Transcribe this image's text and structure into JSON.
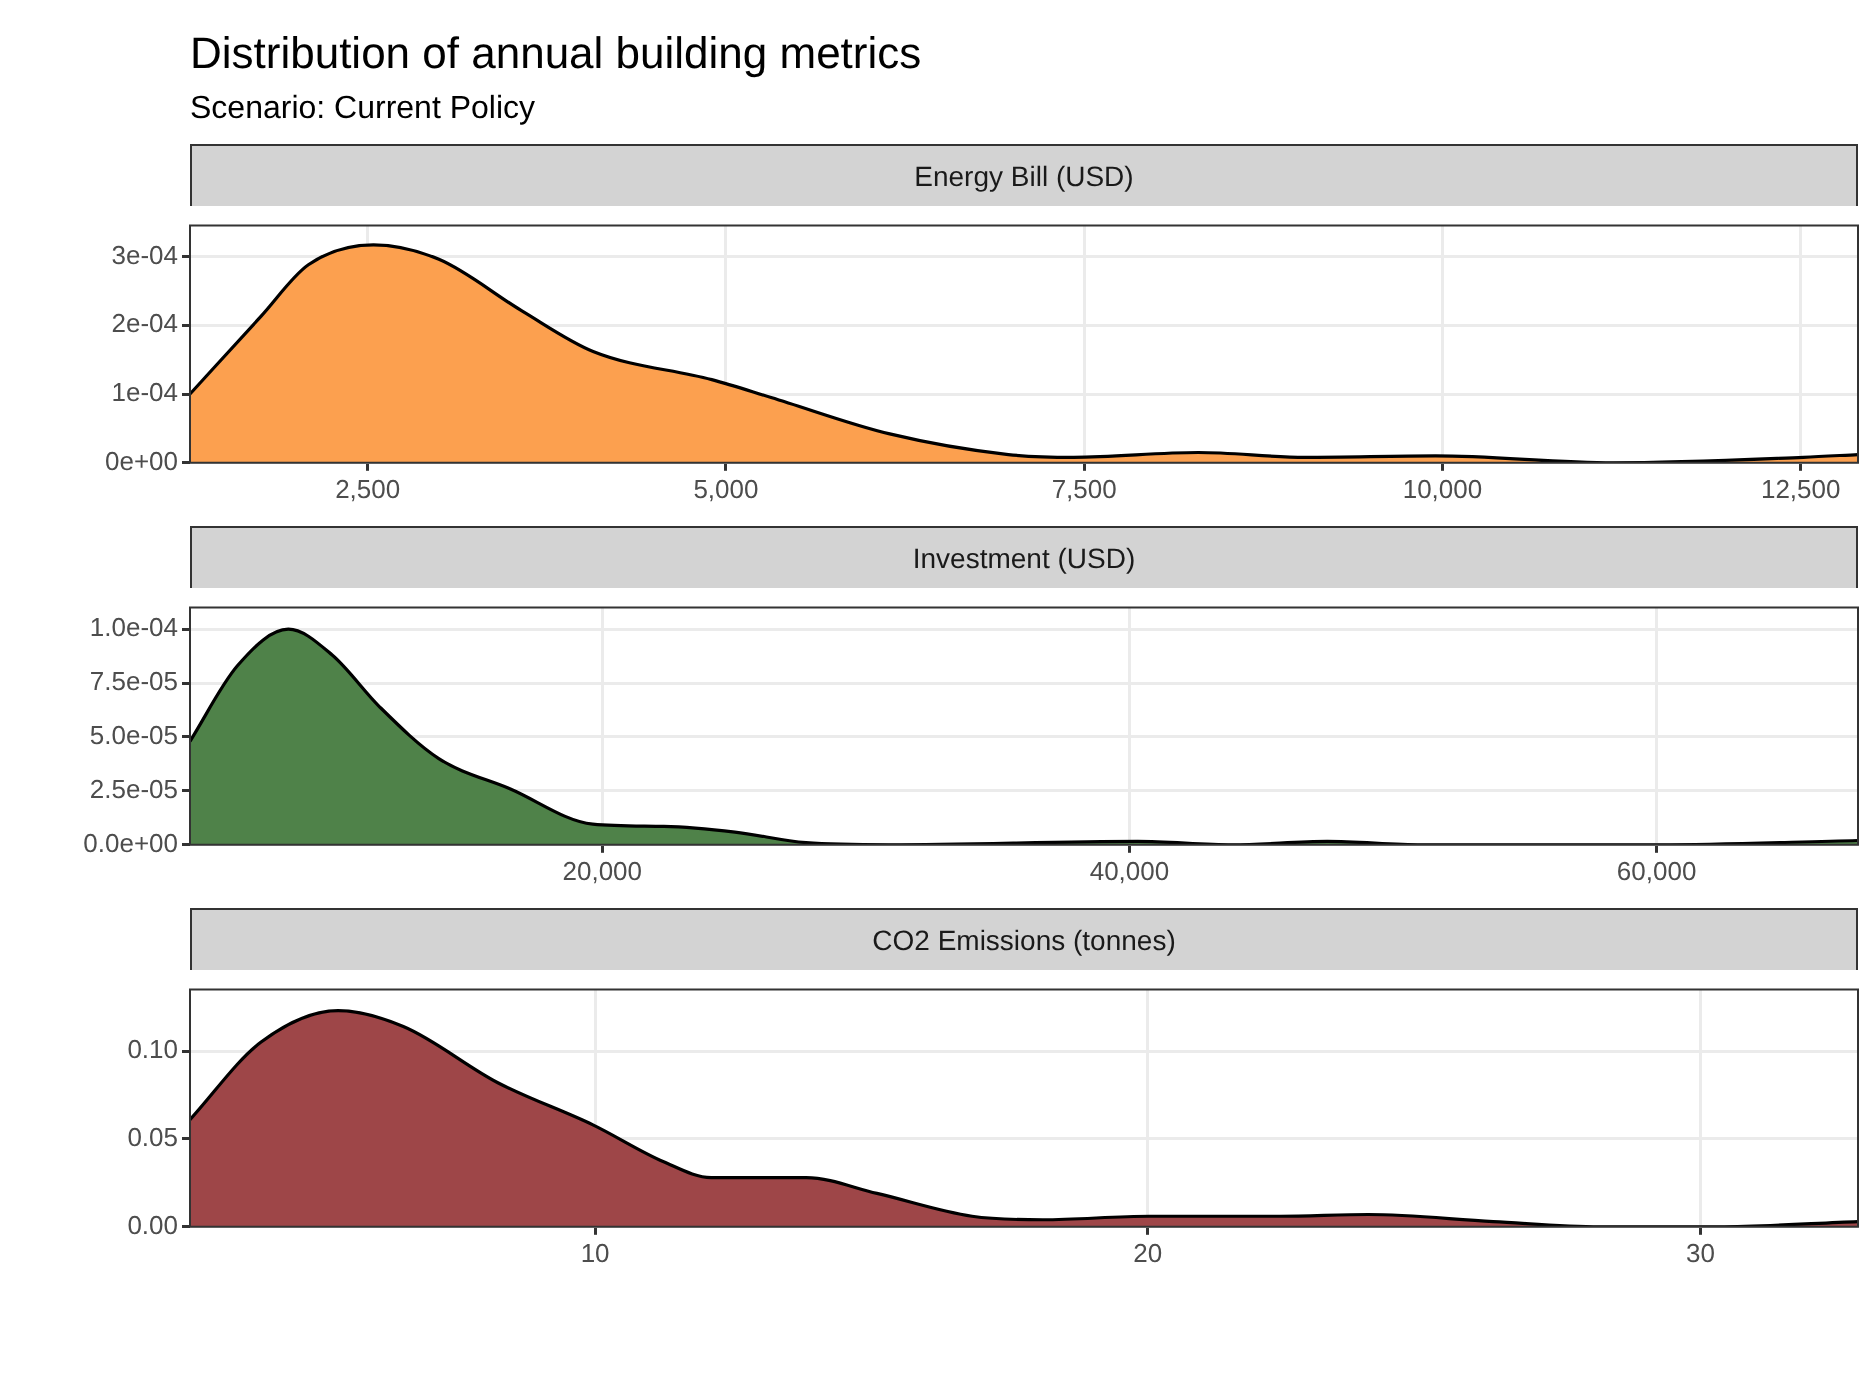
{
  "chart_data": [
    {
      "type": "other",
      "title": "Distribution of annual building metrics",
      "subtitle": "Scenario: Current Policy"
    },
    {
      "type": "area",
      "title": "Energy Bill (USD)",
      "color": "#fca04f",
      "x": [
        1260,
        1755,
        2086,
        2540,
        2997,
        3576,
        4073,
        4901,
        5315,
        6143,
        6971,
        7427,
        8296,
        9041,
        9952,
        11194,
        12519,
        12900
      ],
      "values": [
        0.0001,
        0.000213,
        0.000288,
        0.000317,
        0.000296,
        0.000221,
        0.000162,
        0.000121,
        9.5e-05,
        4.2e-05,
        1.2e-05,
        8e-06,
        1.5e-05,
        8e-06,
        1e-05,
        0,
        8e-06,
        1.2e-05
      ],
      "xlim": [
        1260,
        12900
      ],
      "ylim": [
        0,
        0.000345
      ],
      "xticks": [
        {
          "value": 2500,
          "label": "2,500"
        },
        {
          "value": 5000,
          "label": "5,000"
        },
        {
          "value": 7500,
          "label": "7,500"
        },
        {
          "value": 10000,
          "label": "10,000"
        },
        {
          "value": 12500,
          "label": "12,500"
        }
      ],
      "yticks": [
        {
          "value": 0,
          "label": "0e+00"
        },
        {
          "value": 0.0001,
          "label": "1e-04"
        },
        {
          "value": 0.0002,
          "label": "2e-04"
        },
        {
          "value": 0.0003,
          "label": "3e-04"
        }
      ],
      "grid": true
    },
    {
      "type": "area",
      "title": "Investment (USD)",
      "color": "#4f8249",
      "x": [
        4360,
        6158,
        8091,
        9754,
        11551,
        13798,
        16495,
        19640,
        22337,
        25033,
        27730,
        30875,
        40313,
        43908,
        47503,
        51098,
        60086,
        67640
      ],
      "values": [
        4.8e-05,
        8.3e-05,
        0.0001,
        8.8e-05,
        6.4e-05,
        4e-05,
        2.6e-05,
        9.6e-06,
        8.5e-06,
        5.9e-06,
        1e-06,
        0,
        1.6e-06,
        0,
        1.6e-06,
        0,
        0,
        2e-06
      ],
      "xlim": [
        4360,
        67640
      ],
      "ylim": [
        0,
        0.00011
      ],
      "xticks": [
        {
          "value": 20000,
          "label": "20,000"
        },
        {
          "value": 40000,
          "label": "40,000"
        },
        {
          "value": 60000,
          "label": "60,000"
        }
      ],
      "yticks": [
        {
          "value": 0,
          "label": "0.0e+00"
        },
        {
          "value": 2.5e-05,
          "label": "2.5e-05"
        },
        {
          "value": 5e-05,
          "label": "5.0e-05"
        },
        {
          "value": 7.5e-05,
          "label": "7.5e-05"
        },
        {
          "value": 0.0001,
          "label": "1.0e-04"
        }
      ],
      "grid": true
    },
    {
      "type": "area",
      "title": "CO2 Emissions (tonnes)",
      "color": "#9e4648",
      "x": [
        2.67,
        3.95,
        5.35,
        6.53,
        8.24,
        9.96,
        11.24,
        12.1,
        13.82,
        15.1,
        16.82,
        18.1,
        20.03,
        22.39,
        23.99,
        26.25,
        28.18,
        30.32,
        32.85
      ],
      "values": [
        0.061,
        0.105,
        0.123,
        0.114,
        0.082,
        0.058,
        0.037,
        0.028,
        0.028,
        0.019,
        0.006,
        0.004,
        0.006,
        0.006,
        0.007,
        0.003,
        0,
        0,
        0.003
      ],
      "xlim": [
        2.67,
        32.85
      ],
      "ylim": [
        0,
        0.135
      ],
      "xticks": [
        10,
        20,
        30
      ],
      "yticks": [
        {
          "value": 0,
          "label": "0.00"
        },
        {
          "value": 0.05,
          "label": "0.05"
        },
        {
          "value": 0.1,
          "label": "0.10"
        }
      ],
      "grid": true
    }
  ]
}
